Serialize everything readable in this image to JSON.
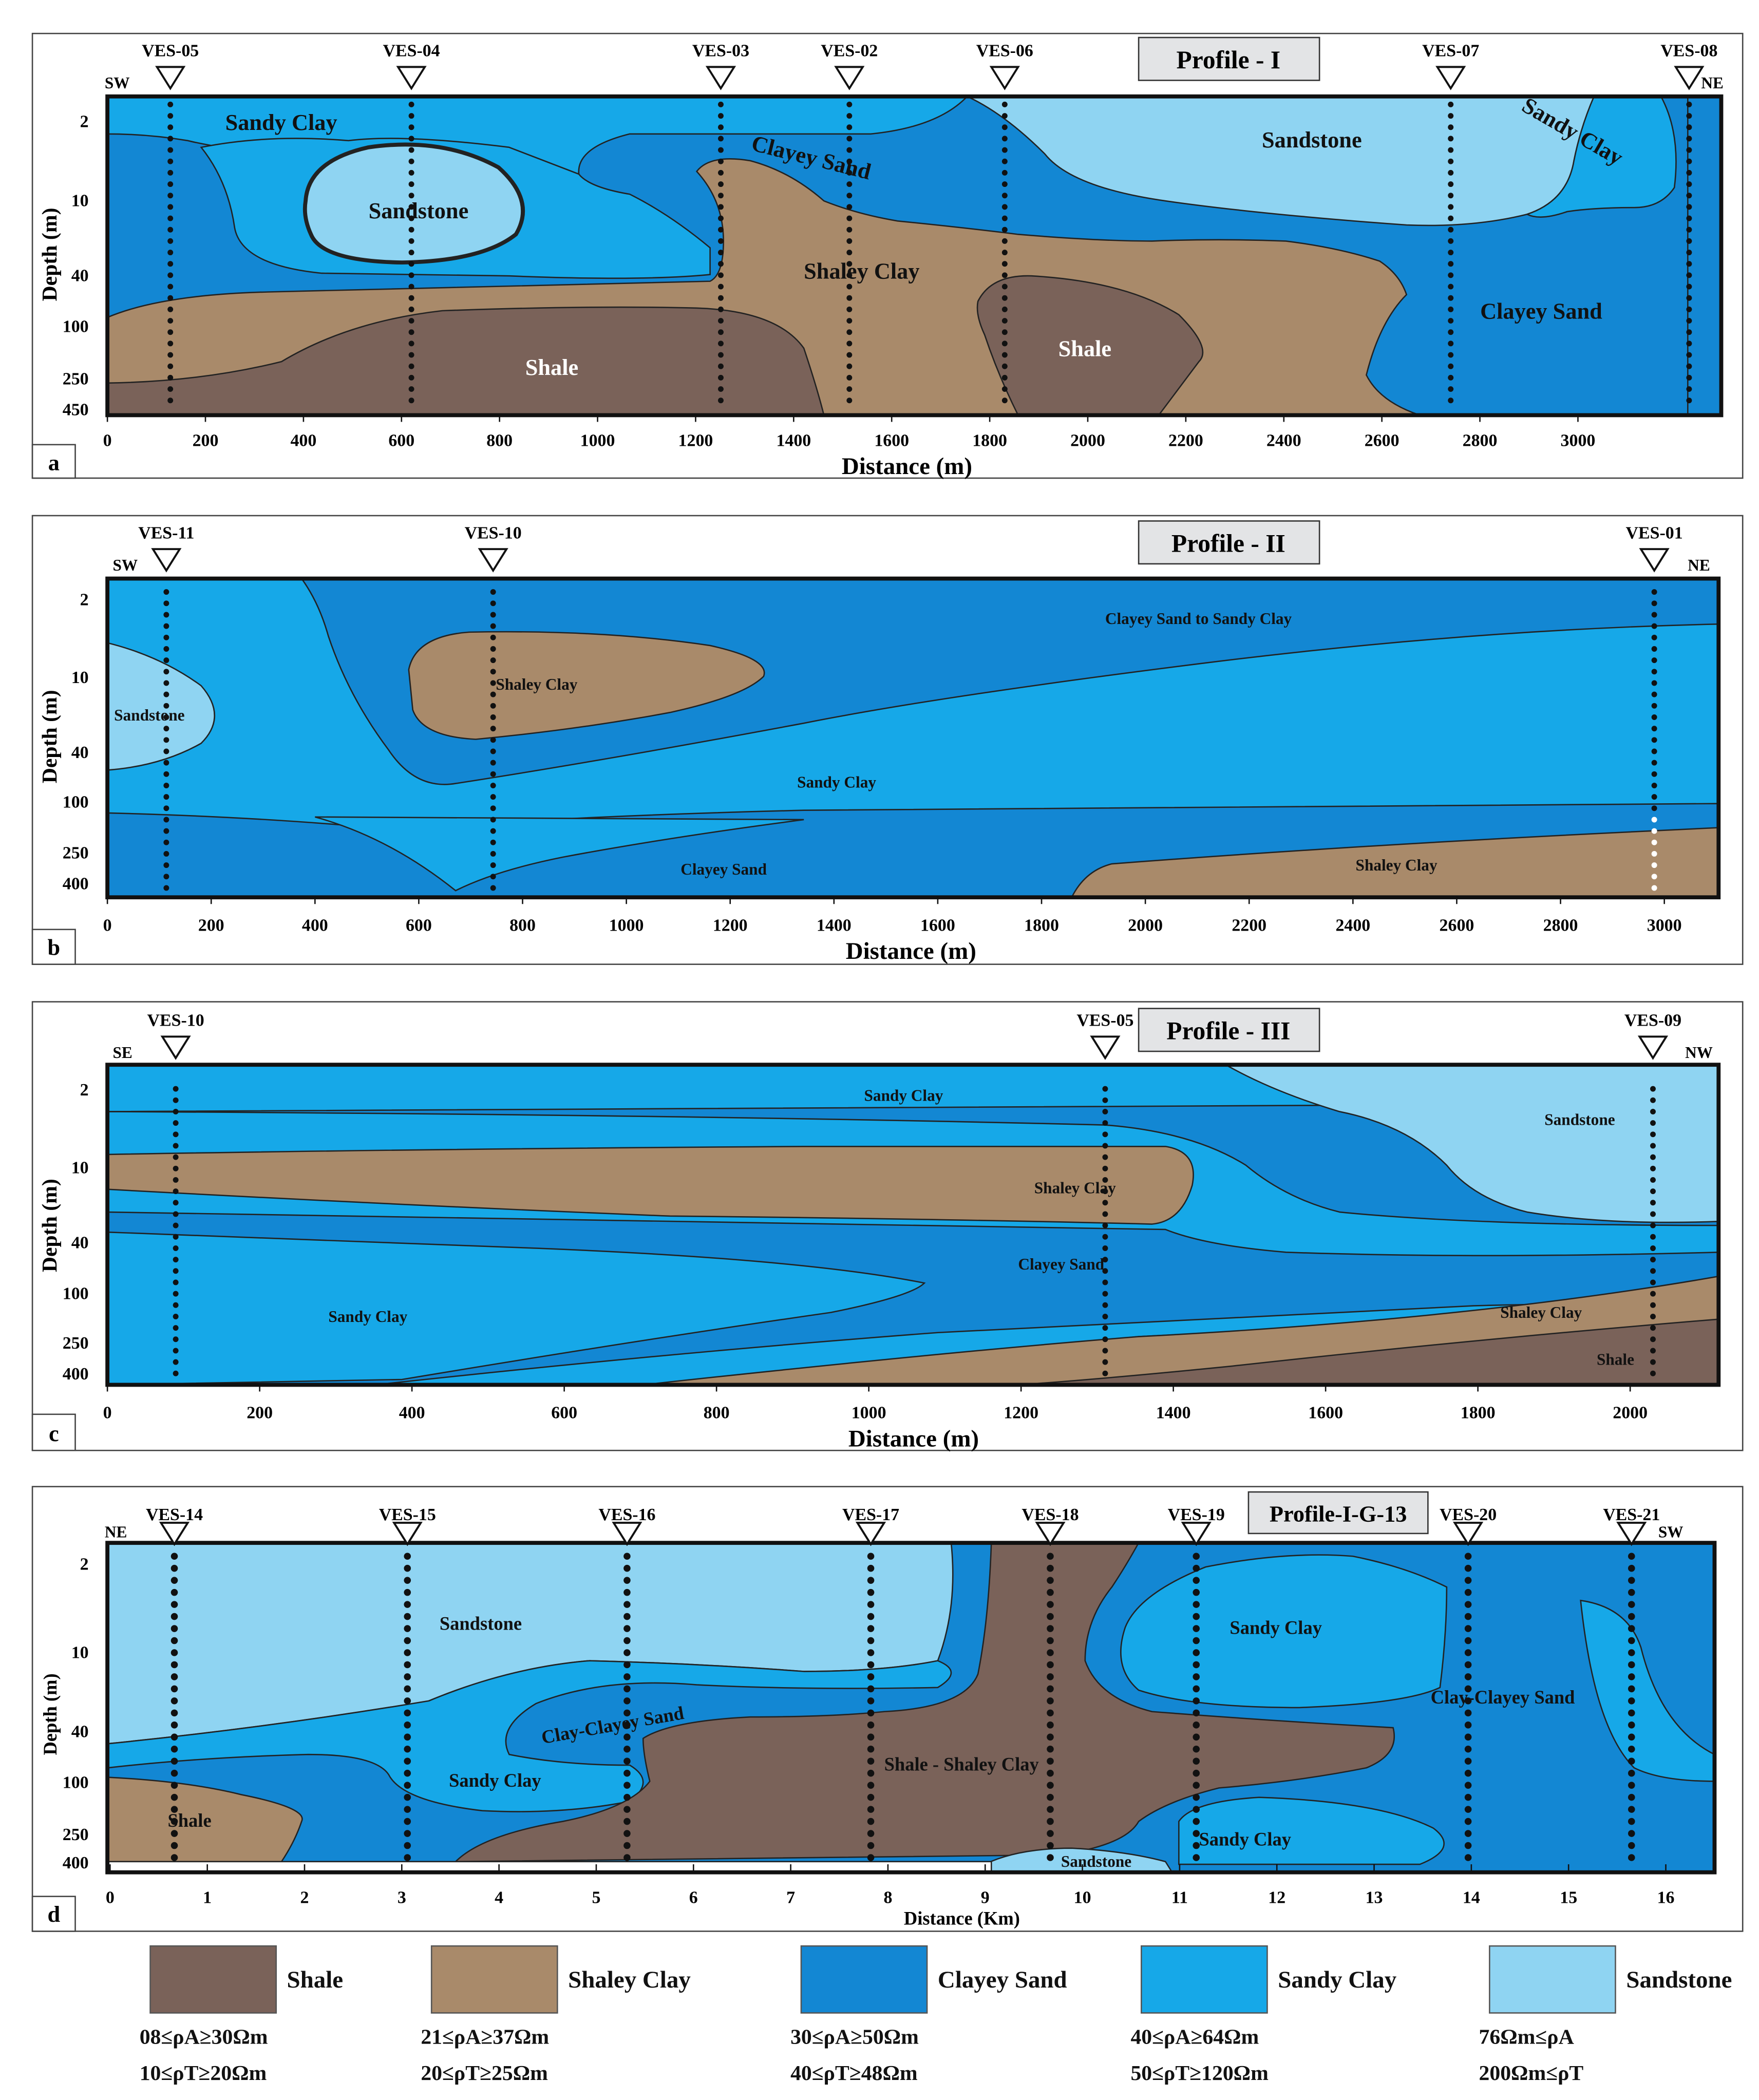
{
  "colors": {
    "shale": "#7a6259",
    "shaley_clay": "#a98a6a",
    "clayey_sand": "#1387d3",
    "sandy_clay": "#16a8e8",
    "sandstone": "#8fd4f2",
    "title_box": "#e3e4e6"
  },
  "depth_ticks": [
    "2",
    "10",
    "40",
    "100",
    "250",
    "450"
  ],
  "depth_ticks_b": [
    "2",
    "10",
    "40",
    "100",
    "250",
    "400"
  ],
  "depth_label": "Depth (m)",
  "distance_label_m": "Distance (m)",
  "distance_label_km": "Distance (Km)",
  "panels": {
    "a": {
      "letter": "a",
      "title": "Profile - I",
      "dir_left": "SW",
      "dir_right": "NE",
      "ves": [
        "VES-05",
        "VES-04",
        "VES-03",
        "VES-02",
        "VES-06",
        "VES-07",
        "VES-08"
      ],
      "x_ticks": [
        "0",
        "200",
        "400",
        "600",
        "800",
        "1000",
        "1200",
        "1400",
        "1600",
        "1800",
        "2000",
        "2200",
        "2400",
        "2600",
        "2800",
        "3000"
      ],
      "labels": {
        "sandy_clay_1": "Sandy Clay",
        "sandstone_1": "Sandstone",
        "clayey_sand_1": "Clayey Sand",
        "shaley_clay_1": "Shaley Clay",
        "shale_1": "Shale",
        "shale_2": "Shale",
        "sandstone_2": "Sandstone",
        "sandy_clay_2": "Sandy Clay",
        "clayey_sand_2": "Clayey Sand"
      }
    },
    "b": {
      "letter": "b",
      "title": "Profile - II",
      "dir_left": "SW",
      "dir_right": "NE",
      "ves": [
        "VES-11",
        "VES-10",
        "VES-01"
      ],
      "x_ticks": [
        "0",
        "200",
        "400",
        "600",
        "800",
        "1000",
        "1200",
        "1400",
        "1600",
        "1800",
        "2000",
        "2200",
        "2400",
        "2600",
        "2800",
        "3000"
      ],
      "labels": {
        "sandstone": "Sandstone",
        "shaley_clay_1": "Shaley Clay",
        "transition": "Clayey Sand to Sandy Clay",
        "sandy_clay": "Sandy Clay",
        "clayey_sand": "Clayey Sand",
        "shaley_clay_2": "Shaley Clay"
      }
    },
    "c": {
      "letter": "c",
      "title": "Profile - III",
      "dir_left": "SE",
      "dir_right": "NW",
      "ves": [
        "VES-10",
        "VES-05",
        "VES-09"
      ],
      "x_ticks": [
        "0",
        "200",
        "400",
        "600",
        "800",
        "1000",
        "1200",
        "1400",
        "1600",
        "1800",
        "2000"
      ],
      "labels": {
        "sandy_clay_1": "Sandy Clay",
        "sandstone": "Sandstone",
        "shaley_clay_1": "Shaley Clay",
        "clayey_sand": "Clayey Sand",
        "sandy_clay_2": "Sandy Clay",
        "shaley_clay_2": "Shaley Clay",
        "shale": "Shale"
      }
    },
    "d": {
      "letter": "d",
      "title": "Profile-I-G-13",
      "dir_left": "NE",
      "dir_right": "SW",
      "ves": [
        "VES-14",
        "VES-15",
        "VES-16",
        "VES-17",
        "VES-18",
        "VES-19",
        "VES-20",
        "VES-21"
      ],
      "x_ticks": [
        "0",
        "1",
        "2",
        "3",
        "4",
        "5",
        "6",
        "7",
        "8",
        "9",
        "10",
        "11",
        "12",
        "13",
        "14",
        "15",
        "16"
      ],
      "labels": {
        "sandstone_1": "Sandstone",
        "sandy_clay_1": "Sandy Clay",
        "clay_clayey_sand_1": "Clay-Clayey Sand",
        "clay_clayey_sand_2": "Clay-Clayey Sand",
        "sandy_clay_2": "Sandy Clay",
        "shale_shaley_clay": "Shale - Shaley Clay",
        "shale": "Shale",
        "sandy_clay_3": "Sandy Clay",
        "sandstone_2": "Sandstone"
      }
    }
  },
  "legend": [
    {
      "name": "Shale",
      "color": "#7a6259",
      "rhoA": "08≤ρA≥30Ωm",
      "rhoT": "10≤ρT≥20Ωm"
    },
    {
      "name": "Shaley Clay",
      "color": "#a98a6a",
      "rhoA": "21≤ρA≥37Ωm",
      "rhoT": "20≤ρT≥25Ωm"
    },
    {
      "name": "Clayey Sand",
      "color": "#1387d3",
      "rhoA": "30≤ρA≥50Ωm",
      "rhoT": "40≤ρT≥48Ωm"
    },
    {
      "name": "Sandy Clay",
      "color": "#16a8e8",
      "rhoA": "40≤ρA≥64Ωm",
      "rhoT": "50≤ρT≥120Ωm"
    },
    {
      "name": "Sandstone",
      "color": "#8fd4f2",
      "rhoA": "76Ωm≤ρA",
      "rhoT": "200Ωm≤ρT"
    }
  ]
}
